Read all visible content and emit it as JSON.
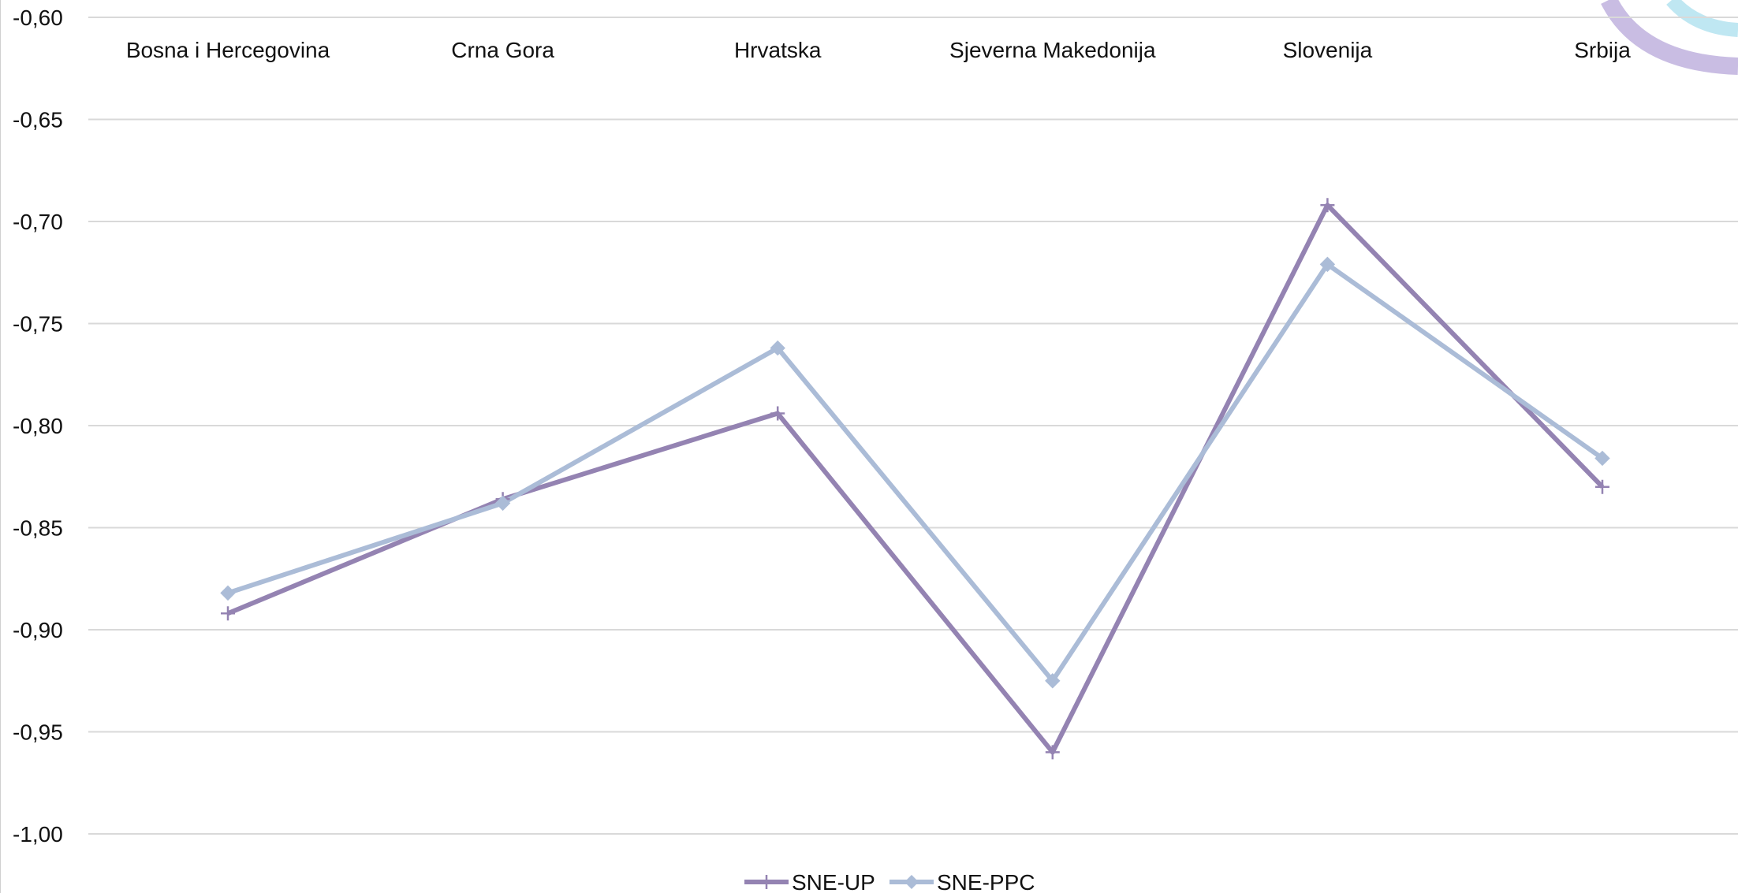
{
  "chart_data": {
    "type": "line",
    "categories": [
      "Bosna i Hercegovina",
      "Crna Gora",
      "Hrvatska",
      "Sjeverna Makedonija",
      "Slovenija",
      "Srbija"
    ],
    "series": [
      {
        "name": "SNE-UP",
        "color": "#9483b2",
        "marker": "plus",
        "values": [
          -0.892,
          -0.836,
          -0.794,
          -0.96,
          -0.692,
          -0.83
        ]
      },
      {
        "name": "SNE-PPC",
        "color": "#abbcd7",
        "marker": "diamond",
        "values": [
          -0.882,
          -0.838,
          -0.762,
          -0.925,
          -0.721,
          -0.816
        ]
      }
    ],
    "ylim": [
      -1.0,
      -0.6
    ],
    "yticks": [
      -0.6,
      -0.65,
      -0.7,
      -0.75,
      -0.8,
      -0.85,
      -0.9,
      -0.95,
      -1.0
    ],
    "ytick_labels": [
      "-0,60",
      "-0,65",
      "-0,70",
      "-0,75",
      "-0,80",
      "-0,85",
      "-0,90",
      "-0,95",
      "-1,00"
    ],
    "grid": true,
    "category_labels_position": "top",
    "legend_position": "bottom-center",
    "title": "",
    "xlabel": "",
    "ylabel": "",
    "grid_color": "#d9d9d9"
  }
}
